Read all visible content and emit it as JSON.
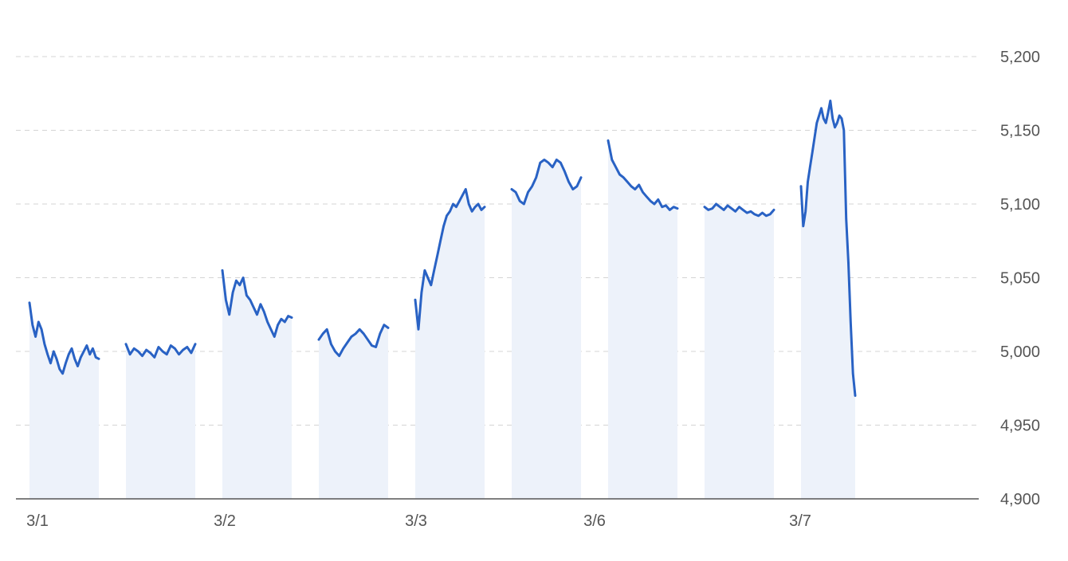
{
  "colors": {
    "line": "#2962c4",
    "fill": "#edf2fa",
    "grid": "#d4d4d4",
    "axis": "#555555",
    "text": "#555555"
  },
  "chart_data": {
    "type": "line",
    "title": "",
    "xlabel": "",
    "ylabel": "",
    "ylim": [
      4900,
      5200
    ],
    "y_ticks": [
      4900,
      4950,
      5000,
      5050,
      5100,
      5150,
      5200
    ],
    "y_tick_labels": [
      "4,900",
      "4,950",
      "5,000",
      "5,050",
      "5,100",
      "5,150",
      "5,200"
    ],
    "y_axis_side": "right",
    "grid": true,
    "x_tick_labels": [
      "3/1",
      "3/2",
      "3/3",
      "3/6",
      "3/7"
    ],
    "series": [
      {
        "sessions": [
          {
            "date": "3/1",
            "part": "day",
            "values": [
              5033,
              5018,
              5010,
              5020,
              5015,
              5005,
              4998,
              4992,
              5000,
              4995,
              4988,
              4985,
              4992,
              4998,
              5002,
              4995,
              4990,
              4996,
              5000,
              5004,
              4998,
              5002,
              4996,
              4995
            ]
          },
          {
            "date": "3/1",
            "part": "night",
            "values": [
              5005,
              4998,
              5002,
              5000,
              4997,
              5001,
              4999,
              4996,
              5003,
              5000,
              4998,
              5004,
              5002,
              4998,
              5001,
              5003,
              4999,
              5005
            ]
          },
          {
            "date": "3/2",
            "part": "day",
            "values": [
              5055,
              5035,
              5025,
              5040,
              5048,
              5045,
              5050,
              5038,
              5035,
              5030,
              5025,
              5032,
              5027,
              5020,
              5015,
              5010,
              5018,
              5022,
              5020,
              5024,
              5023
            ]
          },
          {
            "date": "3/2",
            "part": "night",
            "values": [
              5008,
              5012,
              5015,
              5005,
              5000,
              4997,
              5002,
              5006,
              5010,
              5012,
              5015,
              5012,
              5008,
              5004,
              5003,
              5012,
              5018,
              5016
            ]
          },
          {
            "date": "3/3",
            "part": "day",
            "values": [
              5035,
              5015,
              5040,
              5055,
              5050,
              5045,
              5055,
              5065,
              5075,
              5085,
              5092,
              5095,
              5100,
              5098,
              5102,
              5106,
              5110,
              5100,
              5095,
              5098,
              5100,
              5096,
              5098
            ]
          },
          {
            "date": "3/3",
            "part": "night",
            "values": [
              5110,
              5108,
              5102,
              5100,
              5108,
              5112,
              5118,
              5128,
              5130,
              5128,
              5125,
              5130,
              5128,
              5122,
              5115,
              5110,
              5112,
              5118
            ]
          },
          {
            "date": "3/6",
            "part": "day",
            "values": [
              5143,
              5130,
              5125,
              5120,
              5118,
              5115,
              5112,
              5110,
              5113,
              5108,
              5105,
              5102,
              5100,
              5103,
              5098,
              5099,
              5096,
              5098,
              5097
            ]
          },
          {
            "date": "3/6",
            "part": "night",
            "values": [
              5098,
              5096,
              5097,
              5100,
              5098,
              5096,
              5099,
              5097,
              5095,
              5098,
              5096,
              5094,
              5095,
              5093,
              5092,
              5094,
              5092,
              5093,
              5096
            ]
          },
          {
            "date": "3/7",
            "part": "day",
            "values": [
              5112,
              5085,
              5095,
              5115,
              5125,
              5135,
              5145,
              5155,
              5160,
              5165,
              5158,
              5155,
              5162,
              5170,
              5158,
              5152,
              5155,
              5160,
              5158,
              5150,
              5090,
              5060,
              5020,
              4985,
              4970
            ]
          }
        ]
      }
    ]
  }
}
